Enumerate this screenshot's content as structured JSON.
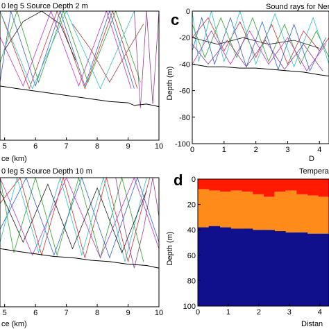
{
  "chart_data": [
    {
      "panel": "",
      "type": "line",
      "title": "0 leg 5 Source Depth 2 m",
      "xlabel": "ce (km)",
      "ylabel": "",
      "x_ticks": [
        5,
        6,
        7,
        8,
        9,
        10
      ],
      "xlim": [
        4.85,
        10
      ],
      "ylim": [
        0,
        100
      ],
      "source_depth_m": 2,
      "series": [
        {
          "color": "#d03030",
          "x": [
            4.85,
            5.8,
            6.7,
            7.6,
            8.5,
            9.3
          ],
          "y": [
            0,
            60,
            0,
            60,
            0,
            60
          ]
        },
        {
          "color": "#30a030",
          "x": [
            4.85,
            5.4,
            6.1,
            6.9,
            7.7,
            8.6,
            9.4
          ],
          "y": [
            40,
            0,
            55,
            0,
            55,
            0,
            55
          ]
        },
        {
          "color": "#3060d0",
          "x": [
            4.85,
            5.2,
            6.0,
            6.8,
            7.6,
            8.4,
            9.2
          ],
          "y": [
            55,
            0,
            58,
            0,
            58,
            0,
            60
          ]
        },
        {
          "color": "#c030c0",
          "x": [
            4.85,
            5.6,
            6.5,
            7.4,
            8.3,
            9.1
          ],
          "y": [
            20,
            58,
            0,
            58,
            0,
            60
          ]
        },
        {
          "color": "#30c0c0",
          "x": [
            4.85,
            5.9,
            7.0,
            8.1,
            9.2
          ],
          "y": [
            0,
            60,
            0,
            60,
            0
          ]
        },
        {
          "color": "#904090",
          "x": [
            9.2,
            9.4,
            9.6,
            9.8,
            10.0
          ],
          "y": [
            0,
            75,
            0,
            72,
            0
          ]
        },
        {
          "color": "#202020",
          "x": [
            5.0,
            5.6,
            6.2,
            6.8,
            7.3
          ],
          "y": [
            30,
            8,
            0,
            10,
            38
          ]
        },
        {
          "color": "#a04040",
          "x": [
            7.2,
            7.8,
            8.4,
            9.0,
            9.5
          ],
          "y": [
            10,
            30,
            55,
            30,
            10
          ]
        }
      ],
      "bottom": {
        "x": [
          4.85,
          5.4,
          6.0,
          6.6,
          7.2,
          7.8,
          8.4,
          9.0,
          9.2,
          9.6,
          10.0
        ],
        "y": [
          58,
          60,
          62,
          64,
          66,
          68,
          70,
          71,
          73,
          72,
          74
        ]
      }
    },
    {
      "panel": "c",
      "type": "line",
      "title": "Sound rays for Ner",
      "xlabel": "D",
      "ylabel": "Depth (m)",
      "x_ticks": [
        0,
        1,
        2,
        3,
        4
      ],
      "y_ticks": [
        0,
        -20,
        -40,
        -60,
        -80,
        -100
      ],
      "xlim": [
        0,
        4.3
      ],
      "ylim": [
        -100,
        0
      ],
      "series": [
        {
          "color": "#d03030",
          "x": [
            0,
            0.5,
            1.0,
            1.5,
            2.0,
            2.5,
            3.0,
            3.5,
            4.0,
            4.3
          ],
          "y": [
            -20,
            -5,
            -30,
            -8,
            -35,
            -10,
            -40,
            -15,
            -30,
            -20
          ]
        },
        {
          "color": "#30a030",
          "x": [
            0,
            0.4,
            0.9,
            1.4,
            1.9,
            2.4,
            2.9,
            3.4,
            3.9,
            4.3
          ],
          "y": [
            -10,
            -35,
            -5,
            -35,
            -5,
            -38,
            -10,
            -40,
            -15,
            -35
          ]
        },
        {
          "color": "#3060d0",
          "x": [
            0,
            0.3,
            0.7,
            1.2,
            1.7,
            2.2,
            2.7,
            3.2,
            3.7,
            4.2
          ],
          "y": [
            -30,
            -5,
            -40,
            -5,
            -42,
            -8,
            -44,
            -10,
            -45,
            -20
          ]
        },
        {
          "color": "#c030c0",
          "x": [
            0,
            0.6,
            1.2,
            1.8,
            2.4,
            3.0,
            3.6,
            4.2
          ],
          "y": [
            -40,
            -15,
            -40,
            -15,
            -40,
            -20,
            -45,
            -25
          ]
        },
        {
          "color": "#30c0c0",
          "x": [
            0,
            0.2,
            0.6,
            1.0,
            1.5,
            2.0,
            2.6,
            3.2,
            3.8,
            4.3
          ],
          "y": [
            0,
            -38,
            0,
            -38,
            0,
            -40,
            -2,
            -42,
            -5,
            -40
          ]
        },
        {
          "color": "#202020",
          "x": [
            0,
            0.8,
            1.6,
            2.4,
            3.2,
            4.0
          ],
          "y": [
            -20,
            -25,
            -20,
            -25,
            -22,
            -28
          ]
        },
        {
          "color": "#904090",
          "x": [
            0,
            0.5,
            1.1,
            1.7,
            2.3,
            2.9,
            3.5,
            4.1
          ],
          "y": [
            -25,
            -40,
            -22,
            -42,
            -22,
            -44,
            -25,
            -45
          ]
        }
      ],
      "bottom": {
        "x": [
          0,
          0.5,
          1.0,
          1.5,
          2.0,
          2.5,
          3.0,
          3.5,
          4.0,
          4.3
        ],
        "y": [
          -40,
          -42,
          -42,
          -43,
          -43,
          -44,
          -45,
          -46,
          -48,
          -49
        ]
      }
    },
    {
      "panel": "",
      "type": "line",
      "title": "0 leg 5 Source Depth 10 m",
      "xlabel": "ce (km)",
      "ylabel": "",
      "x_ticks": [
        5,
        6,
        7,
        8,
        9,
        10
      ],
      "xlim": [
        4.85,
        10
      ],
      "ylim": [
        0,
        100
      ],
      "source_depth_m": 10,
      "series": [
        {
          "color": "#d03030",
          "x": [
            4.85,
            5.5,
            6.2,
            6.9,
            7.6,
            8.3,
            9.0,
            9.7
          ],
          "y": [
            20,
            0,
            60,
            0,
            62,
            0,
            65,
            0
          ]
        },
        {
          "color": "#30a030",
          "x": [
            4.85,
            5.3,
            6.0,
            6.7,
            7.4,
            8.1,
            8.8,
            9.5
          ],
          "y": [
            0,
            58,
            0,
            60,
            0,
            62,
            0,
            65
          ]
        },
        {
          "color": "#3060d0",
          "x": [
            4.85,
            5.7,
            6.6,
            7.5,
            8.4,
            9.3,
            10.0
          ],
          "y": [
            40,
            0,
            60,
            0,
            62,
            0,
            50
          ]
        },
        {
          "color": "#c030c0",
          "x": [
            4.85,
            5.9,
            7.0,
            8.1,
            9.2,
            10.0
          ],
          "y": [
            0,
            60,
            0,
            62,
            0,
            55
          ]
        },
        {
          "color": "#30c0c0",
          "x": [
            4.85,
            5.4,
            6.1,
            6.8,
            7.5,
            8.2,
            8.9,
            9.6
          ],
          "y": [
            50,
            0,
            58,
            0,
            60,
            0,
            65,
            0
          ]
        },
        {
          "color": "#202020",
          "x": [
            4.85,
            5.6,
            6.4,
            7.2,
            8.0,
            8.8,
            9.6
          ],
          "y": [
            10,
            50,
            5,
            55,
            8,
            58,
            10
          ]
        },
        {
          "color": "#904090",
          "x": [
            8.6,
            8.9,
            9.2,
            9.5,
            9.8,
            10.0
          ],
          "y": [
            0,
            40,
            70,
            40,
            0,
            30
          ]
        }
      ],
      "bottom": {
        "x": [
          4.85,
          5.4,
          6.0,
          6.6,
          7.2,
          7.8,
          8.4,
          9.0,
          9.6,
          10.0
        ],
        "y": [
          55,
          57,
          59,
          61,
          62,
          64,
          65,
          67,
          68,
          70
        ]
      }
    },
    {
      "panel": "d",
      "type": "heatmap",
      "title": "Tempera",
      "xlabel": "Distan",
      "ylabel": "Depth (m)",
      "x_ticks": [
        0,
        1,
        2,
        3,
        4
      ],
      "y_ticks": [
        0,
        20,
        40,
        60,
        80,
        100
      ],
      "xlim": [
        0,
        4.3
      ],
      "ylim": [
        0,
        100
      ],
      "layers": [
        {
          "name_hidden": true,
          "color": "#ff1a00",
          "top": [
            0,
            0,
            0,
            0,
            0,
            0,
            0,
            0,
            0,
            0,
            0,
            0
          ],
          "bottom": [
            8,
            9,
            10,
            9,
            10,
            12,
            14,
            10,
            9,
            12,
            13,
            14
          ]
        },
        {
          "name_hidden": true,
          "color": "#ff8c1a",
          "bottom": [
            38,
            37,
            38,
            39,
            39,
            40,
            40,
            41,
            42,
            42,
            43,
            43
          ]
        },
        {
          "name_hidden": true,
          "color": "#10108c",
          "bottom": [
            100,
            100,
            100,
            100,
            100,
            100,
            100,
            100,
            100,
            100,
            100,
            100
          ]
        }
      ]
    }
  ],
  "colors": {
    "axes": "#000000",
    "background": "#ffffff"
  }
}
